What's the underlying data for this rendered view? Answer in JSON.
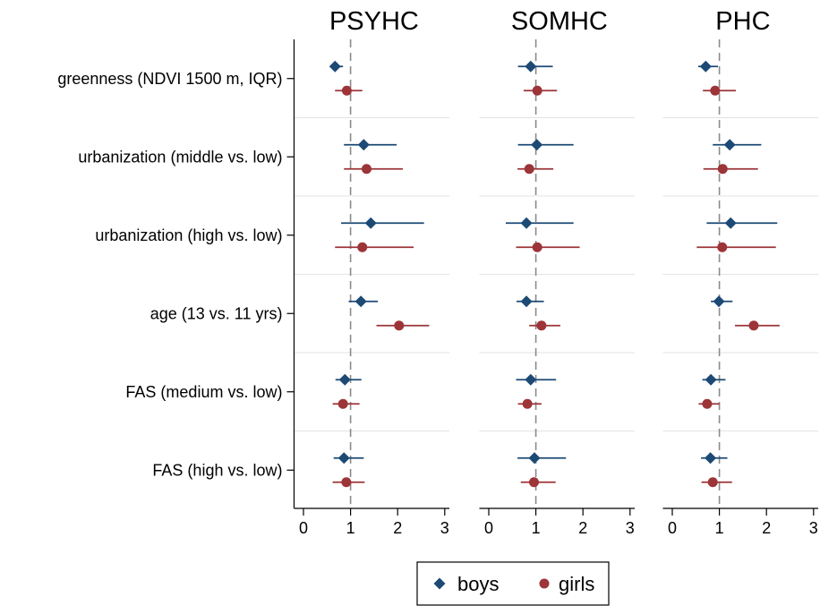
{
  "chart_data": {
    "type": "forest",
    "panels": [
      "PSYHC",
      "SOMHC",
      "PHC"
    ],
    "categories": [
      "greenness (NDVI 1500 m, IQR)",
      "urbanization (middle vs. low)",
      "urbanization (high vs. low)",
      "age (13 vs. 11 yrs)",
      "FAS (medium vs. low)",
      "FAS (high vs. low)"
    ],
    "xlim": [
      -0.2,
      3.1
    ],
    "xticks": [
      "0",
      "1",
      "2",
      "3"
    ],
    "reference_line": 1,
    "series": [
      {
        "name": "boys",
        "color": "#1c4a75",
        "marker": "diamond",
        "panels": [
          [
            [
              0.67,
              0.57,
              0.84
            ],
            [
              1.28,
              0.86,
              1.98
            ],
            [
              1.43,
              0.8,
              2.56
            ],
            [
              1.22,
              0.96,
              1.58
            ],
            [
              0.88,
              0.68,
              1.23
            ],
            [
              0.86,
              0.64,
              1.28
            ]
          ],
          [
            [
              0.89,
              0.62,
              1.36
            ],
            [
              1.02,
              0.62,
              1.8
            ],
            [
              0.8,
              0.36,
              1.8
            ],
            [
              0.8,
              0.59,
              1.17
            ],
            [
              0.89,
              0.58,
              1.43
            ],
            [
              0.97,
              0.61,
              1.64
            ]
          ],
          [
            [
              0.71,
              0.55,
              0.97
            ],
            [
              1.22,
              0.86,
              1.89
            ],
            [
              1.24,
              0.73,
              2.23
            ],
            [
              0.99,
              0.82,
              1.28
            ],
            [
              0.82,
              0.64,
              1.13
            ],
            [
              0.81,
              0.61,
              1.17
            ]
          ]
        ]
      },
      {
        "name": "girls",
        "color": "#9c3438",
        "marker": "circle",
        "panels": [
          [
            [
              0.92,
              0.67,
              1.25
            ],
            [
              1.34,
              0.86,
              2.11
            ],
            [
              1.25,
              0.67,
              2.34
            ],
            [
              2.03,
              1.55,
              2.67
            ],
            [
              0.84,
              0.62,
              1.19
            ],
            [
              0.91,
              0.62,
              1.3
            ]
          ],
          [
            [
              1.03,
              0.74,
              1.45
            ],
            [
              0.86,
              0.61,
              1.37
            ],
            [
              1.03,
              0.58,
              1.93
            ],
            [
              1.12,
              0.86,
              1.52
            ],
            [
              0.82,
              0.62,
              1.12
            ],
            [
              0.96,
              0.68,
              1.42
            ]
          ],
          [
            [
              0.91,
              0.65,
              1.35
            ],
            [
              1.07,
              0.66,
              1.82
            ],
            [
              1.06,
              0.52,
              2.2
            ],
            [
              1.73,
              1.33,
              2.28
            ],
            [
              0.74,
              0.56,
              1.0
            ],
            [
              0.86,
              0.62,
              1.27
            ]
          ]
        ]
      }
    ],
    "legend": {
      "position": "bottom-center",
      "entries": [
        "boys",
        "girls"
      ]
    }
  }
}
